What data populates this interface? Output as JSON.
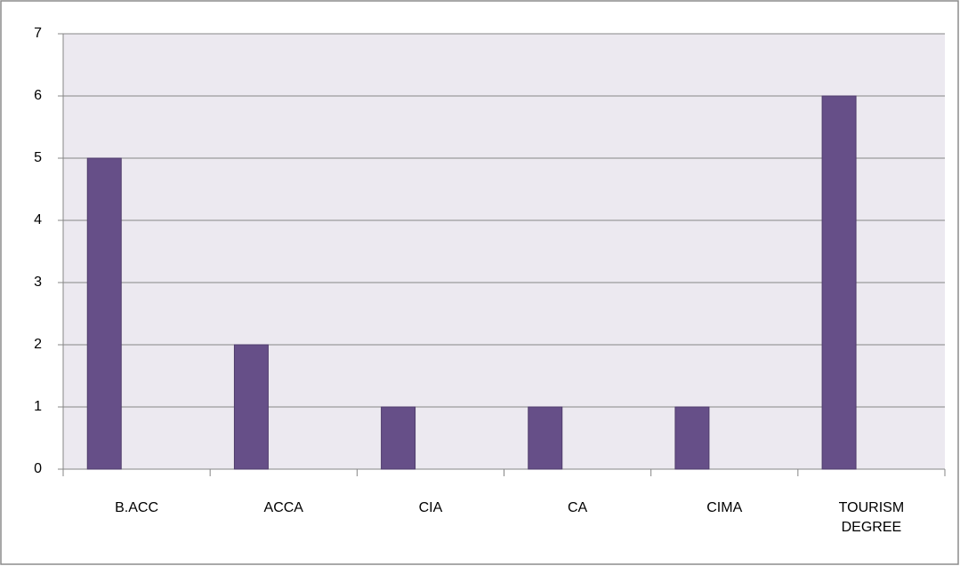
{
  "chart_data": {
    "type": "bar",
    "categories": [
      "B.ACC",
      "ACCA",
      "CIA",
      "CA",
      "CIMA",
      "TOURISM DEGREE"
    ],
    "values": [
      5,
      2,
      1,
      1,
      1,
      6
    ],
    "color": "#664f88",
    "ylim": [
      0,
      7
    ],
    "yticks": [
      0,
      1,
      2,
      3,
      4,
      5,
      6,
      7
    ],
    "grid": true
  }
}
